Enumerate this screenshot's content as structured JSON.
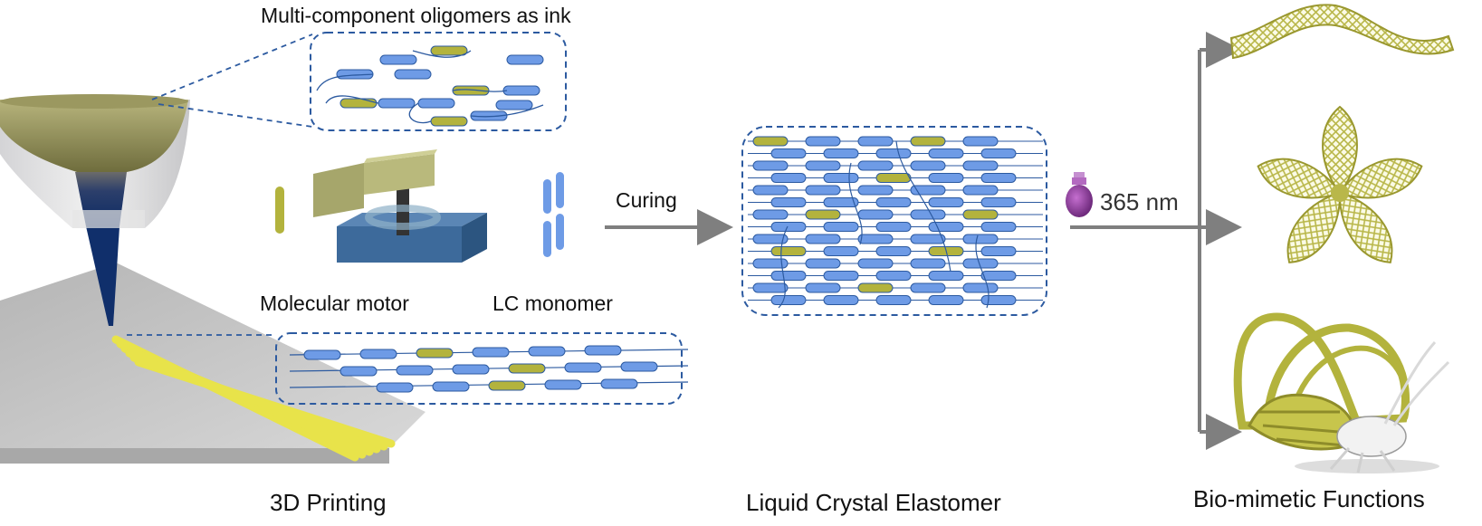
{
  "labels": {
    "ink": "Multi-component oligomers as ink",
    "molecular_motor": "Molecular motor",
    "lc_monomer": "LC monomer",
    "curing": "Curing",
    "uv": "365 nm",
    "printing": "3D Printing",
    "lce": "Liquid Crystal Elastomer",
    "bio": "Bio-mimetic Functions"
  },
  "colors": {
    "blue_mesogen": "#6e9be6",
    "yellow_mesogen": "#b3b33d",
    "dashed_frame": "#2c5aa0",
    "arrow": "#7f7f7f",
    "motor_rotor": "#a6a66b",
    "motor_stator": "#3d6a9b",
    "uv_bulb": "#8b3a9a",
    "printed_filament": "#e8e34a"
  },
  "icons": [
    "printer-nozzle",
    "molecular-motor-icon",
    "lc-monomer-icon",
    "uv-bulb-icon",
    "lattice-ribbon",
    "lattice-flower",
    "lattice-butterfly"
  ]
}
